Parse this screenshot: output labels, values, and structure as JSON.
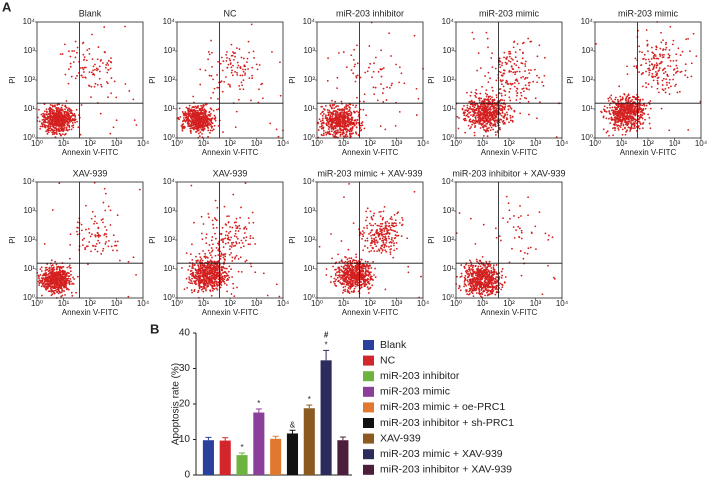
{
  "panel_a": {
    "label": "A",
    "x_label": "Annex​in V-FITC",
    "y_label": "PI",
    "tick_labels": [
      "10⁰",
      "10¹",
      "10²",
      "10³",
      "10⁴"
    ],
    "plots": [
      {
        "title": "Blank"
      },
      {
        "title": "NC"
      },
      {
        "title": "miR-203 inhibitor"
      },
      {
        "title": "miR-203 mimic"
      },
      {
        "title": "miR-203 mimic"
      },
      {
        "title": "XAV-939"
      },
      {
        "title": "XAV-939"
      },
      {
        "title": "miR-203 mimic + XAV-939"
      },
      {
        "title": "miR-203 inhibitor + XAV-939"
      }
    ]
  },
  "chart_data": {
    "type": "bar",
    "panel_label": "B",
    "y_label": "Apoptosis rate (%)",
    "categories": [
      "Blank",
      "NC",
      "miR-203 inhibitor",
      "miR-203 mimic",
      "miR-203 mimic + oe-PRC1",
      "miR-203 inhibitor + sh-PRC1",
      "XAV-939",
      "miR-203 mimic + XAV-939",
      "miR-203 inhibitor + XAV-939"
    ],
    "values": [
      9.8,
      9.7,
      5.6,
      17.6,
      10.2,
      11.7,
      18.8,
      32.3,
      9.8
    ],
    "errors": [
      0.8,
      0.8,
      0.6,
      1.0,
      0.7,
      0.9,
      0.9,
      2.8,
      0.9
    ],
    "colors": [
      "#2b3f9c",
      "#d3262c",
      "#6cb43f",
      "#8b3f9b",
      "#e0792f",
      "#111111",
      "#8a5a20",
      "#2b2b5c",
      "#4b1f3c"
    ],
    "annotations": [
      [],
      [],
      [
        "*"
      ],
      [
        "*"
      ],
      [],
      [
        "&"
      ],
      [
        "*"
      ],
      [
        "*",
        "#"
      ],
      []
    ],
    "ylim": [
      0,
      40
    ],
    "yticks": [
      0,
      10,
      20,
      30,
      40
    ]
  }
}
